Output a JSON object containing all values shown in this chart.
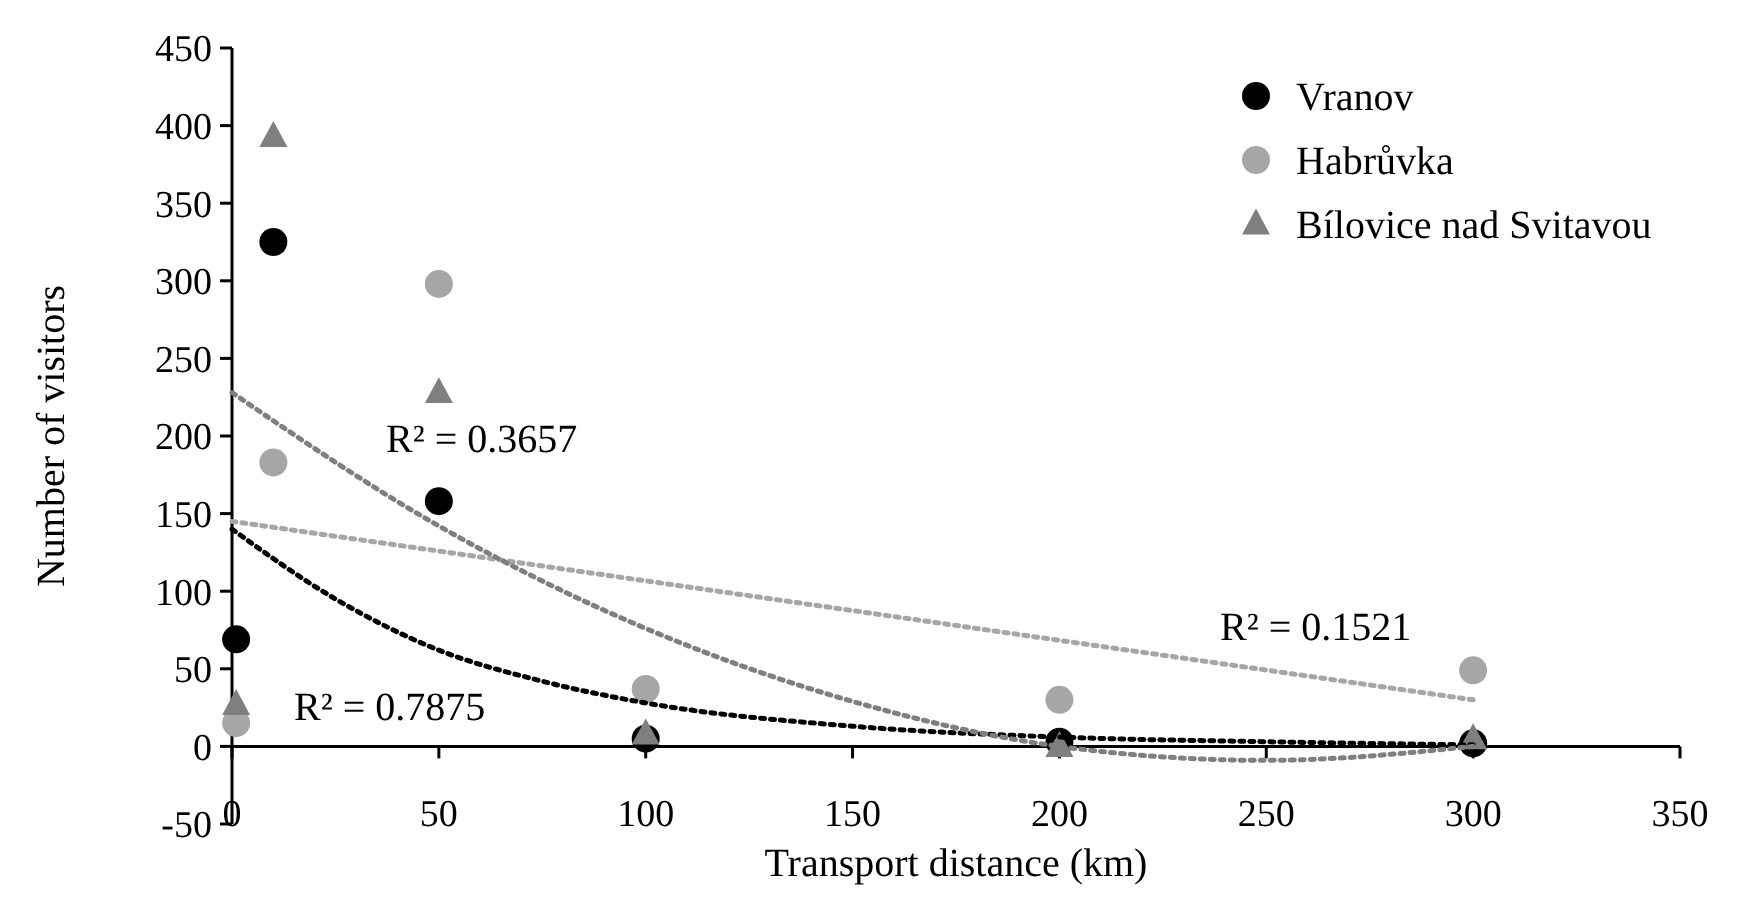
{
  "chart_data": {
    "type": "scatter",
    "xlabel": "Transport distance (km)",
    "ylabel": "Number of visitors",
    "xlim": [
      0,
      350
    ],
    "xticks": [
      0,
      50,
      100,
      150,
      200,
      250,
      300,
      350
    ],
    "ylim": [
      -50,
      450
    ],
    "yticks": [
      -50,
      0,
      50,
      100,
      150,
      200,
      250,
      300,
      350,
      400,
      450
    ],
    "grid": false,
    "legend": "top right",
    "series": [
      {
        "name": "Vranov",
        "color": "#000000",
        "marker": "circle",
        "x": [
          1,
          10,
          50,
          100,
          200,
          300
        ],
        "values": [
          69,
          325,
          158,
          5,
          3,
          2
        ]
      },
      {
        "name": "Habrůvka",
        "color": "#a6a6a6",
        "marker": "circle",
        "x": [
          1,
          10,
          50,
          100,
          200,
          300
        ],
        "values": [
          15,
          183,
          298,
          37,
          30,
          49
        ]
      },
      {
        "name": "Bílovice nad Svitavou",
        "color": "#7f7f7f",
        "marker": "triangle",
        "x": [
          1,
          10,
          50,
          100,
          200,
          300
        ],
        "values": [
          27,
          393,
          228,
          8,
          0,
          5
        ]
      },
      {
        "type": "line",
        "color": "#000000",
        "line_style": "dotted",
        "marker": "none",
        "x": [
          0,
          25,
          50,
          75,
          100,
          150,
          200,
          250,
          300
        ],
        "values": [
          140,
          95,
          62,
          42,
          28,
          13,
          6,
          3,
          1
        ]
      },
      {
        "type": "line",
        "color": "#a6a6a6",
        "line_style": "dotted",
        "marker": "none",
        "x": [
          0,
          300
        ],
        "values": [
          145,
          30
        ]
      },
      {
        "type": "line",
        "color": "#7f7f7f",
        "line_style": "dotted",
        "marker": "none",
        "x": [
          0,
          50,
          100,
          150,
          200,
          250,
          300
        ],
        "values": [
          228,
          142,
          76,
          29,
          0,
          -9,
          0
        ]
      }
    ],
    "annotations": [
      "R² = 0.3657",
      "R² = 0.7875",
      "R² = 0.1521"
    ]
  }
}
